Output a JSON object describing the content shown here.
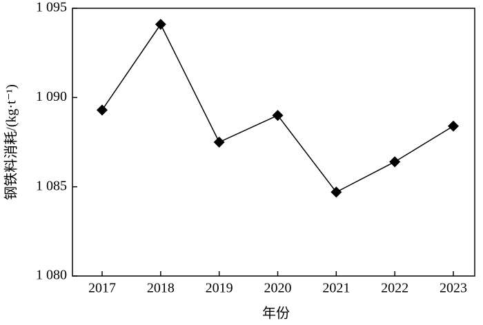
{
  "chart_data": {
    "type": "line",
    "x_label": "年份",
    "y_label": "钢铁料消耗/(kg·t⁻¹)",
    "categories": [
      "2017",
      "2018",
      "2019",
      "2020",
      "2021",
      "2022",
      "2023"
    ],
    "values": [
      1089.3,
      1094.1,
      1087.5,
      1089.0,
      1084.7,
      1086.4,
      1088.4
    ],
    "color": "#000000",
    "ylim": [
      1080,
      1095
    ],
    "yticks": [
      {
        "value": 1080,
        "label": "1 080"
      },
      {
        "value": 1085,
        "label": "1 085"
      },
      {
        "value": 1090,
        "label": "1 090"
      },
      {
        "value": 1095,
        "label": "1 095"
      }
    ]
  }
}
